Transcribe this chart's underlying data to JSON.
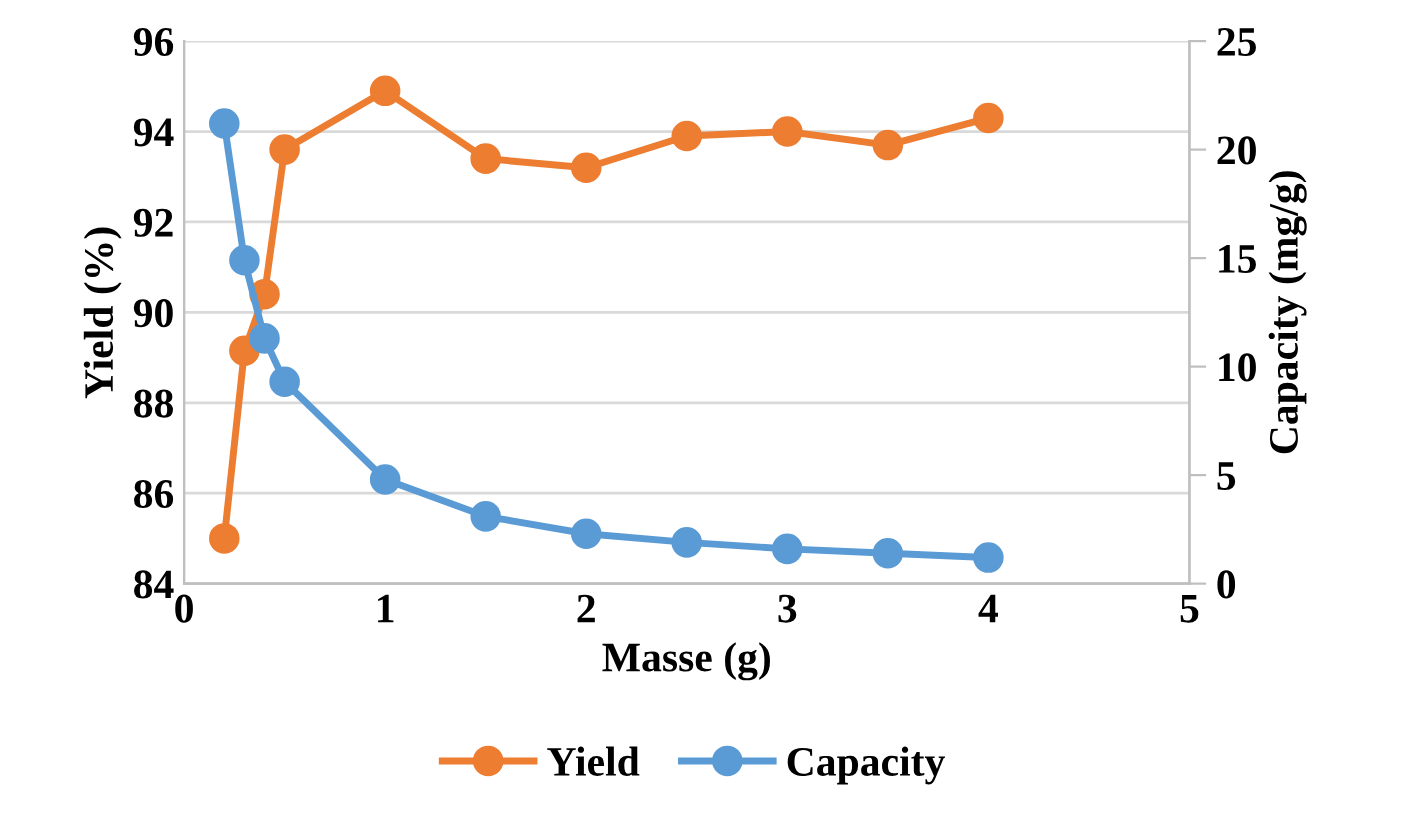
{
  "chart_data": {
    "type": "line",
    "xlabel": "Masse (g)",
    "ylabel": "Yield (%)",
    "y2label": "Capacity (mg/g)",
    "x": [
      0.2,
      0.3,
      0.4,
      0.5,
      1,
      1.5,
      2,
      2.5,
      3,
      3.5,
      4
    ],
    "series": [
      {
        "name": "Yield",
        "color": "#ed7d31",
        "values": [
          85.0,
          89.15,
          90.4,
          93.6,
          94.9,
          93.4,
          93.2,
          93.9,
          94.0,
          93.7,
          94.3
        ]
      },
      {
        "name": "Capacity",
        "color": "#5b9bd5",
        "axis": "y2",
        "values": [
          21.2,
          14.9,
          11.3,
          9.3,
          4.8,
          3.1,
          2.3,
          1.9,
          1.6,
          1.4,
          1.2
        ]
      }
    ],
    "xlim": [
      0,
      5
    ],
    "xticks": [
      0,
      1,
      2,
      3,
      4,
      5
    ],
    "ylim": [
      84,
      96
    ],
    "yticks": [
      84,
      86,
      88,
      90,
      92,
      94,
      96
    ],
    "y2lim": [
      0,
      25
    ],
    "y2ticks": [
      0,
      5,
      10,
      15,
      20,
      25
    ],
    "grid": "y",
    "legend": "bottom",
    "marker": "circle",
    "line_style": "solid"
  }
}
